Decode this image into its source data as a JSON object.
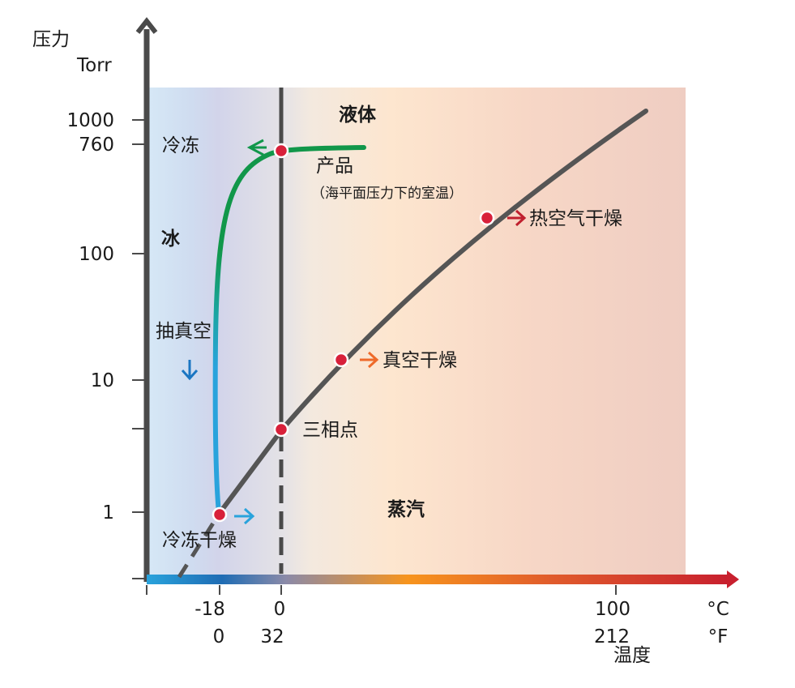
{
  "y_axis": {
    "label": "压力",
    "unit": "Torr",
    "ticks": [
      "1000",
      "760",
      "100",
      "10",
      "1"
    ]
  },
  "x_axis": {
    "celsius_ticks": [
      "-18",
      "0",
      "100"
    ],
    "fahrenheit_ticks": [
      "0",
      "32",
      "212"
    ],
    "celsius_unit": "°C",
    "fahrenheit_unit": "°F",
    "label": "温度"
  },
  "regions": {
    "liquid": "液体",
    "ice": "冰",
    "vapor": "蒸汽",
    "freezing": "冷冻"
  },
  "annotations": {
    "product": "产品",
    "product_note": "（海平面压力下的室温）",
    "hot_air_drying": "热空气干燥",
    "vacuum_drying": "真空干燥",
    "triple_point": "三相点",
    "evacuation": "抽真空",
    "freeze_drying": "冷冻干燥"
  },
  "colors": {
    "axis": "#4a4a4a",
    "curve": "#555555",
    "process_green": "#11974a",
    "process_blue": "#29a3dc",
    "point": "#d8203a",
    "arrow_red": "#c0202e",
    "arrow_orange": "#ee6a2a",
    "arrow_blue_down": "#1b76c2",
    "arrow_blue_right": "#29a3dc"
  }
}
